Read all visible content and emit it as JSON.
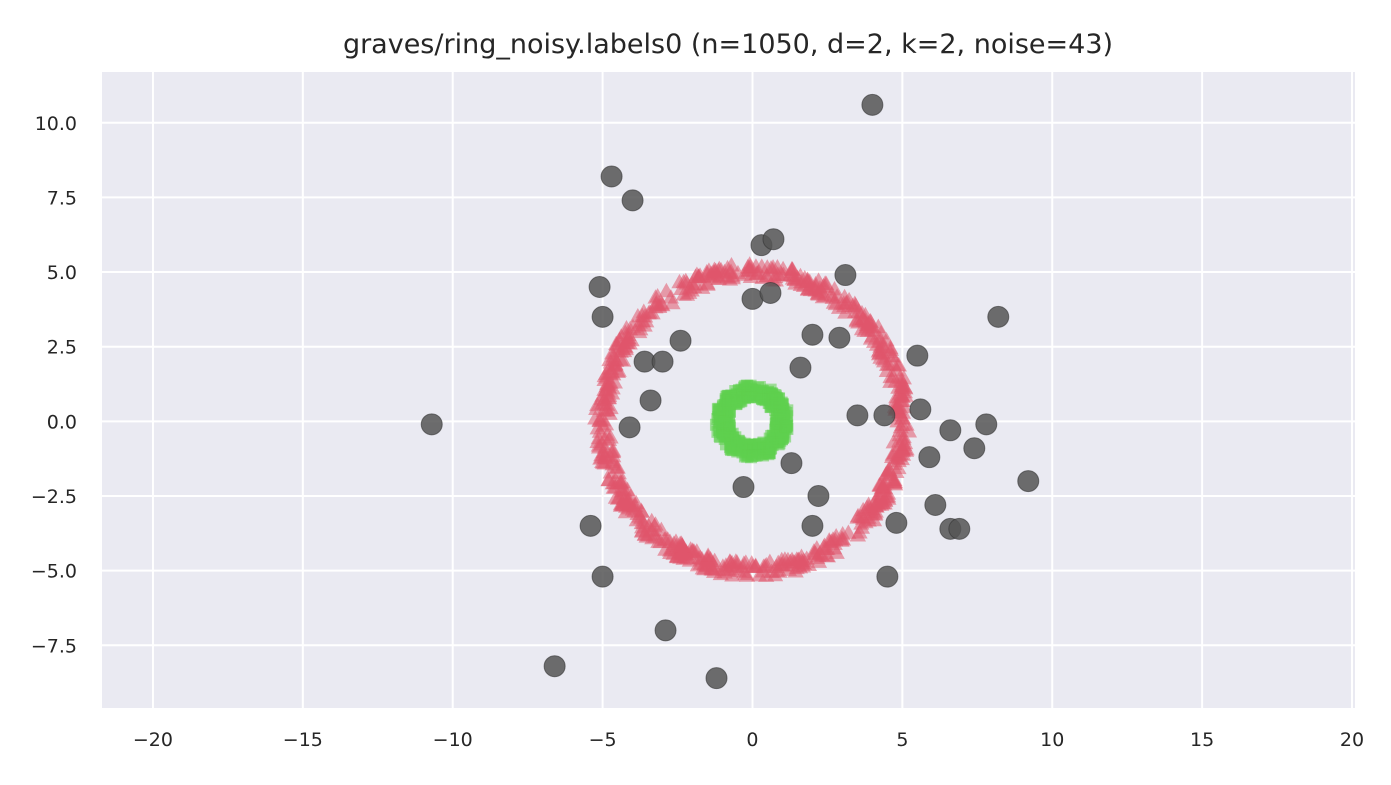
{
  "chart_data": {
    "type": "scatter",
    "title": "graves/ring_noisy.labels0 (n=1050, d=2, k=2, noise=43)",
    "xlabel": "",
    "ylabel": "",
    "xlim": [
      -21.7,
      20.1
    ],
    "ylim": [
      -9.6,
      11.7
    ],
    "xticks": [
      -20,
      -15,
      -10,
      -5,
      0,
      5,
      10,
      15,
      20
    ],
    "yticks": [
      -7.5,
      -5.0,
      -2.5,
      0.0,
      2.5,
      5.0,
      7.5,
      10.0
    ],
    "xtick_labels": [
      "−20",
      "−15",
      "−10",
      "−5",
      "0",
      "5",
      "10",
      "15",
      "20"
    ],
    "ytick_labels": [
      "−7.5",
      "−5.0",
      "−2.5",
      "0.0",
      "2.5",
      "5.0",
      "7.5",
      "10.0"
    ],
    "grid": true,
    "background": "#eaeaf2",
    "series": [
      {
        "marker": "triangle",
        "color": "#e0556b",
        "shape": "ring",
        "center": [
          0,
          0
        ],
        "radius": 5.0,
        "count": 700
      },
      {
        "marker": "square",
        "color": "#5ecf4f",
        "shape": "ring",
        "center": [
          0,
          0
        ],
        "radius": 1.0,
        "count": 350
      },
      {
        "marker": "circle",
        "color": "#555555",
        "points": [
          [
            4.0,
            10.6
          ],
          [
            -4.7,
            8.2
          ],
          [
            -4.0,
            7.4
          ],
          [
            0.3,
            5.9
          ],
          [
            0.7,
            6.1
          ],
          [
            3.1,
            4.9
          ],
          [
            -5.1,
            4.5
          ],
          [
            0.0,
            4.1
          ],
          [
            0.6,
            4.3
          ],
          [
            8.2,
            3.5
          ],
          [
            -5.0,
            3.5
          ],
          [
            2.0,
            2.9
          ],
          [
            2.9,
            2.8
          ],
          [
            -2.4,
            2.7
          ],
          [
            5.5,
            2.2
          ],
          [
            -3.6,
            2.0
          ],
          [
            -3.0,
            2.0
          ],
          [
            1.6,
            1.8
          ],
          [
            -3.4,
            0.7
          ],
          [
            3.5,
            0.2
          ],
          [
            4.4,
            0.2
          ],
          [
            5.6,
            0.4
          ],
          [
            -10.7,
            -0.1
          ],
          [
            -4.1,
            -0.2
          ],
          [
            7.8,
            -0.1
          ],
          [
            6.6,
            -0.3
          ],
          [
            7.4,
            -0.9
          ],
          [
            5.9,
            -1.2
          ],
          [
            1.3,
            -1.4
          ],
          [
            9.2,
            -2.0
          ],
          [
            -0.3,
            -2.2
          ],
          [
            2.2,
            -2.5
          ],
          [
            6.1,
            -2.8
          ],
          [
            -5.4,
            -3.5
          ],
          [
            2.0,
            -3.5
          ],
          [
            4.8,
            -3.4
          ],
          [
            6.6,
            -3.6
          ],
          [
            6.9,
            -3.6
          ],
          [
            -5.0,
            -5.2
          ],
          [
            4.5,
            -5.2
          ],
          [
            -2.9,
            -7.0
          ],
          [
            -6.6,
            -8.2
          ],
          [
            -1.2,
            -8.6
          ]
        ]
      }
    ]
  }
}
